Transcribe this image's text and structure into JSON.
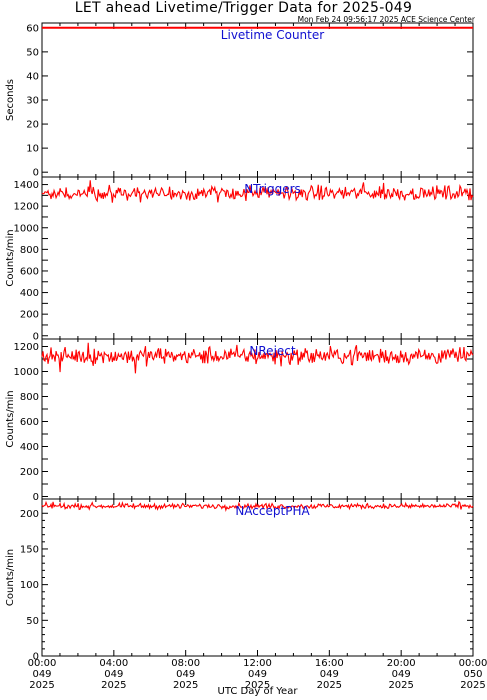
{
  "header": {
    "title": "LET ahead Livetime/Trigger Data for 2025-049",
    "subtitle": "Mon Feb 24 09:56:17 2025 ACE Science Center"
  },
  "chart_data": [
    {
      "type": "line",
      "title": "Livetime Counter",
      "ylabel": "Seconds",
      "ylim": [
        -2,
        62
      ],
      "yticks": [
        0,
        10,
        20,
        30,
        40,
        50,
        60
      ],
      "xlim": [
        0,
        24
      ],
      "series": [
        {
          "color": "#ff0000",
          "mean": 60,
          "noise": 0,
          "spikes": []
        }
      ]
    },
    {
      "type": "line",
      "title": "NTriggers",
      "ylabel": "Counts/min",
      "ylim": [
        -30,
        1470
      ],
      "yticks": [
        0,
        100,
        200,
        300,
        400,
        500,
        600,
        700,
        800,
        900,
        1000,
        1100,
        1200,
        1300,
        1400
      ],
      "ytick_labels": [
        "0",
        "",
        "200",
        "",
        "400",
        "",
        "600",
        "",
        "800",
        "",
        "1000",
        "",
        "1200",
        "",
        "1400"
      ],
      "xlim": [
        0,
        24
      ],
      "series": [
        {
          "color": "#ff0000",
          "mean": 1320,
          "noise": 45,
          "spikes": [
            [
              2.7,
              1440
            ],
            [
              5.5,
              1235
            ],
            [
              9.8,
              1235
            ],
            [
              17.9,
              1420
            ],
            [
              19.0,
              1415
            ]
          ]
        }
      ]
    },
    {
      "type": "line",
      "title": "NReject",
      "ylabel": "Counts/min",
      "ylim": [
        -20,
        1260
      ],
      "yticks": [
        0,
        100,
        200,
        300,
        400,
        500,
        600,
        700,
        800,
        900,
        1000,
        1100,
        1200
      ],
      "ytick_labels": [
        "0",
        "",
        "200",
        "",
        "400",
        "",
        "600",
        "",
        "800",
        "",
        "1000",
        "",
        "1200"
      ],
      "xlim": [
        0,
        24
      ],
      "series": [
        {
          "color": "#ff0000",
          "mean": 1125,
          "noise": 48,
          "spikes": [
            [
              2.6,
              1230
            ],
            [
              5.2,
              985
            ],
            [
              1.0,
              995
            ],
            [
              17.5,
              1210
            ]
          ]
        }
      ]
    },
    {
      "type": "line",
      "title": "NAcceptPHA",
      "ylabel": "Counts/min",
      "ylim": [
        0,
        220
      ],
      "yticks": [
        0,
        50,
        100,
        150,
        200
      ],
      "minor_ticks": [
        10,
        20,
        30,
        40,
        60,
        70,
        80,
        90,
        110,
        120,
        130,
        140,
        160,
        170,
        180,
        190
      ],
      "xlim": [
        0,
        24
      ],
      "series": [
        {
          "color": "#ff0000",
          "mean": 210,
          "noise": 2.5,
          "spikes": [
            [
              0.6,
              216
            ],
            [
              23.2,
              216
            ]
          ]
        }
      ]
    }
  ],
  "xaxis": {
    "ticks": [
      0,
      4,
      8,
      12,
      16,
      20,
      24
    ],
    "tick_labels": [
      [
        "00:00",
        "049",
        "2025"
      ],
      [
        "04:00",
        "049",
        "2025"
      ],
      [
        "08:00",
        "049",
        "2025"
      ],
      [
        "12:00",
        "049",
        "2025"
      ],
      [
        "16:00",
        "049",
        "2025"
      ],
      [
        "20:00",
        "049",
        "2025"
      ],
      [
        "00:00",
        "050",
        "2025"
      ]
    ],
    "label": "UTC Day of Year"
  }
}
